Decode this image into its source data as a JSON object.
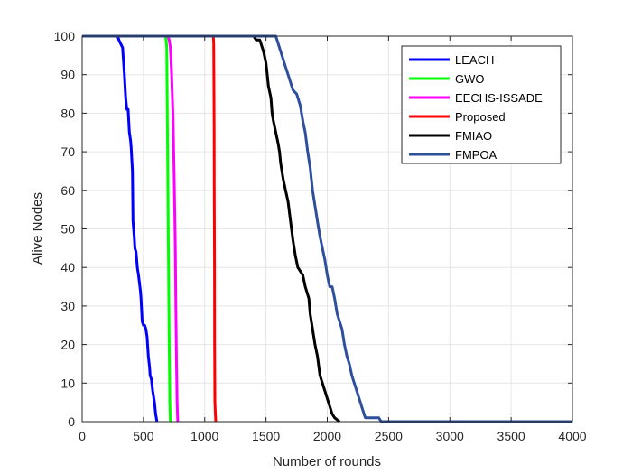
{
  "chart_data": {
    "type": "line",
    "xlabel": "Number of rounds",
    "ylabel": "Alive Nodes",
    "xlim": [
      0,
      4000
    ],
    "ylim": [
      0,
      100
    ],
    "xticks": [
      0,
      500,
      1000,
      1500,
      2000,
      2500,
      3000,
      3500,
      4000
    ],
    "yticks": [
      0,
      10,
      20,
      30,
      40,
      50,
      60,
      70,
      80,
      90,
      100
    ],
    "grid": true,
    "legend_position": "top-right",
    "series": [
      {
        "name": "LEACH",
        "color": "#0000ff",
        "points": [
          [
            0,
            100
          ],
          [
            290,
            100
          ],
          [
            300,
            99
          ],
          [
            330,
            97
          ],
          [
            345,
            90
          ],
          [
            355,
            84
          ],
          [
            365,
            81
          ],
          [
            375,
            81
          ],
          [
            385,
            75
          ],
          [
            395,
            73
          ],
          [
            400,
            71
          ],
          [
            405,
            68
          ],
          [
            410,
            65
          ],
          [
            415,
            52
          ],
          [
            420,
            50
          ],
          [
            425,
            48
          ],
          [
            430,
            45
          ],
          [
            440,
            44
          ],
          [
            450,
            40
          ],
          [
            460,
            38
          ],
          [
            475,
            34
          ],
          [
            480,
            32
          ],
          [
            490,
            26
          ],
          [
            500,
            25
          ],
          [
            510,
            25
          ],
          [
            520,
            24
          ],
          [
            530,
            22
          ],
          [
            540,
            17
          ],
          [
            550,
            14
          ],
          [
            555,
            12
          ],
          [
            565,
            11
          ],
          [
            575,
            8
          ],
          [
            590,
            5
          ],
          [
            600,
            2
          ],
          [
            610,
            0
          ]
        ]
      },
      {
        "name": "GWO",
        "color": "#00ff00",
        "points": [
          [
            0,
            100
          ],
          [
            680,
            100
          ],
          [
            685,
            99
          ],
          [
            690,
            97
          ],
          [
            695,
            80
          ],
          [
            700,
            60
          ],
          [
            705,
            40
          ],
          [
            710,
            20
          ],
          [
            715,
            5
          ],
          [
            720,
            0
          ]
        ]
      },
      {
        "name": "EECHS-ISSADE",
        "color": "#ff00ff",
        "points": [
          [
            0,
            100
          ],
          [
            700,
            100
          ],
          [
            710,
            99
          ],
          [
            720,
            97
          ],
          [
            730,
            90
          ],
          [
            740,
            80
          ],
          [
            750,
            65
          ],
          [
            760,
            45
          ],
          [
            765,
            30
          ],
          [
            770,
            15
          ],
          [
            775,
            5
          ],
          [
            780,
            0
          ]
        ]
      },
      {
        "name": "Proposed",
        "color": "#ff0000",
        "points": [
          [
            0,
            100
          ],
          [
            1070,
            100
          ],
          [
            1073,
            98
          ],
          [
            1075,
            90
          ],
          [
            1077,
            75
          ],
          [
            1078,
            60
          ],
          [
            1080,
            40
          ],
          [
            1081,
            20
          ],
          [
            1083,
            5
          ],
          [
            1086,
            3
          ],
          [
            1090,
            0
          ]
        ]
      },
      {
        "name": "FMIAO",
        "color": "#000000",
        "points": [
          [
            0,
            100
          ],
          [
            1400,
            100
          ],
          [
            1420,
            99
          ],
          [
            1450,
            99
          ],
          [
            1480,
            96
          ],
          [
            1500,
            93
          ],
          [
            1510,
            90
          ],
          [
            1520,
            87
          ],
          [
            1540,
            84
          ],
          [
            1550,
            80
          ],
          [
            1560,
            78
          ],
          [
            1580,
            75
          ],
          [
            1600,
            72
          ],
          [
            1610,
            70
          ],
          [
            1620,
            67
          ],
          [
            1640,
            63
          ],
          [
            1660,
            60
          ],
          [
            1680,
            57
          ],
          [
            1700,
            52
          ],
          [
            1720,
            47
          ],
          [
            1740,
            43
          ],
          [
            1760,
            40
          ],
          [
            1800,
            38
          ],
          [
            1820,
            35
          ],
          [
            1850,
            32
          ],
          [
            1860,
            28
          ],
          [
            1880,
            24
          ],
          [
            1900,
            20
          ],
          [
            1920,
            17
          ],
          [
            1940,
            12
          ],
          [
            1960,
            10
          ],
          [
            1980,
            8
          ],
          [
            2000,
            6
          ],
          [
            2020,
            4
          ],
          [
            2040,
            2
          ],
          [
            2060,
            1
          ],
          [
            2100,
            0
          ]
        ]
      },
      {
        "name": "FMPOA",
        "color": "#2e4f9e",
        "points": [
          [
            0,
            100
          ],
          [
            1580,
            100
          ],
          [
            1600,
            98
          ],
          [
            1620,
            96
          ],
          [
            1640,
            94
          ],
          [
            1660,
            92
          ],
          [
            1680,
            90
          ],
          [
            1700,
            88
          ],
          [
            1720,
            86
          ],
          [
            1750,
            85
          ],
          [
            1780,
            82
          ],
          [
            1800,
            78
          ],
          [
            1820,
            75
          ],
          [
            1840,
            70
          ],
          [
            1860,
            66
          ],
          [
            1880,
            60
          ],
          [
            1900,
            56
          ],
          [
            1920,
            52
          ],
          [
            1940,
            48
          ],
          [
            1960,
            45
          ],
          [
            1980,
            42
          ],
          [
            2000,
            38
          ],
          [
            2020,
            35
          ],
          [
            2040,
            35
          ],
          [
            2060,
            32
          ],
          [
            2080,
            28
          ],
          [
            2100,
            26
          ],
          [
            2120,
            24
          ],
          [
            2140,
            20
          ],
          [
            2160,
            17
          ],
          [
            2180,
            15
          ],
          [
            2200,
            12
          ],
          [
            2220,
            10
          ],
          [
            2240,
            8
          ],
          [
            2260,
            6
          ],
          [
            2280,
            4
          ],
          [
            2300,
            2
          ],
          [
            2310,
            1
          ],
          [
            2420,
            1
          ],
          [
            2440,
            0
          ],
          [
            4000,
            0
          ]
        ]
      }
    ]
  }
}
